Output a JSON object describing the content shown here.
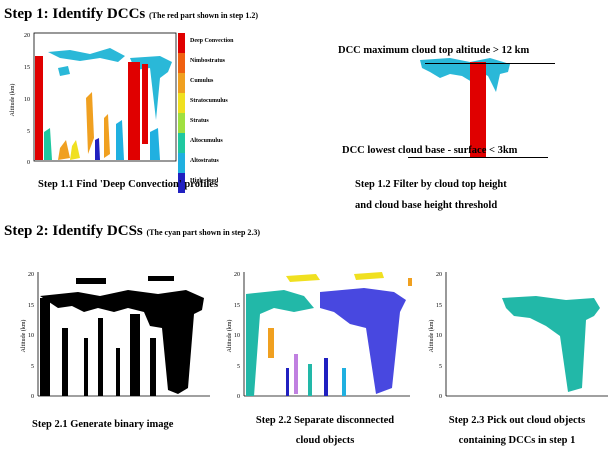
{
  "step1": {
    "title": "Step 1: Identify DCCs",
    "note": "(The red part shown in step 1.2)"
  },
  "step2": {
    "title": "Step 2: Identify DCSs",
    "note": "(The cyan part shown in step 2.3)"
  },
  "axis": {
    "ylabel": "Altitude (km)",
    "ticks": [
      "0",
      "5",
      "10",
      "15",
      "20"
    ]
  },
  "legend": [
    {
      "label": "Deep Convection",
      "color": "#e00000"
    },
    {
      "label": "Nimbostratus",
      "color": "#f06010"
    },
    {
      "label": "Cumulus",
      "color": "#f0a020"
    },
    {
      "label": "Stratocumulus",
      "color": "#f0e020"
    },
    {
      "label": "Stratus",
      "color": "#a0e040"
    },
    {
      "label": "Altocumulus",
      "color": "#20c8a0"
    },
    {
      "label": "Altostratus",
      "color": "#20b0e0"
    },
    {
      "label": "High cloud",
      "color": "#2020c0"
    }
  ],
  "annotations": {
    "top": "DCC maximum cloud top altitude > 12 km",
    "bottom": "DCC lowest cloud base - surface < 3km"
  },
  "captions": {
    "s11": "Step 1.1 Find 'Deep Convection' profiles",
    "s12a": "Step 1.2 Filter by cloud top height",
    "s12b": "and cloud base height threshold",
    "s21": "Step 2.1 Generate binary image",
    "s22a": "Step 2.2 Separate disconnected",
    "s22b": "cloud objects",
    "s23a": "Step 2.3 Pick out cloud objects",
    "s23b": "containing DCCs in step 1"
  },
  "colors": {
    "red": "#e00000",
    "cyan": "#2ab8d8",
    "teal": "#22b8a8",
    "blue": "#4848e0",
    "black": "#000000"
  }
}
